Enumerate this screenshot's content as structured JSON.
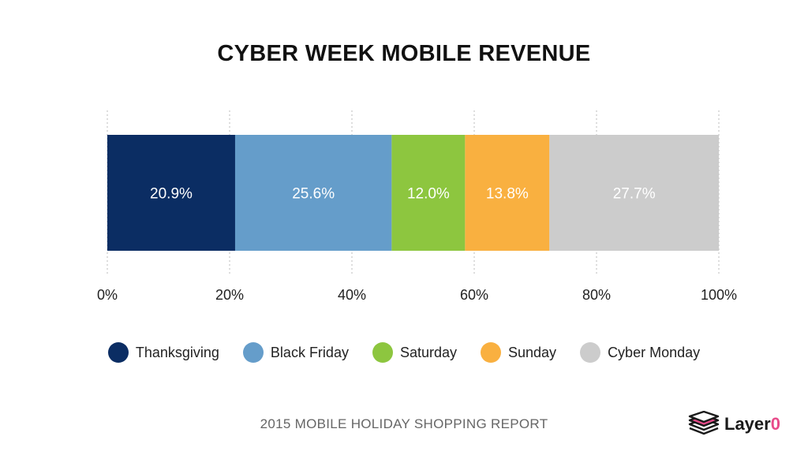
{
  "chart_data": {
    "type": "bar",
    "orientation": "horizontal",
    "stacked": true,
    "title": "CYBER WEEK MOBILE REVENUE",
    "categories": [
      ""
    ],
    "series": [
      {
        "name": "Thanksgiving",
        "values": [
          20.9
        ],
        "label": "20.9%",
        "color": "#0b2d63"
      },
      {
        "name": "Black Friday",
        "values": [
          25.6
        ],
        "label": "25.6%",
        "color": "#659dca"
      },
      {
        "name": "Saturday",
        "values": [
          12.0
        ],
        "label": "12.0%",
        "color": "#8dc63f"
      },
      {
        "name": "Sunday",
        "values": [
          13.8
        ],
        "label": "13.8%",
        "color": "#f9b040"
      },
      {
        "name": "Cyber Monday",
        "values": [
          27.7
        ],
        "label": "27.7%",
        "color": "#cccccc"
      }
    ],
    "xlim": [
      0,
      100
    ],
    "xticks": [
      0,
      20,
      40,
      60,
      80,
      100
    ],
    "xtick_labels": [
      "0%",
      "20%",
      "40%",
      "60%",
      "80%",
      "100%"
    ],
    "grid": "vertical dashed",
    "legend_position": "bottom"
  },
  "footer": "2015 MOBILE HOLIDAY SHOPPING REPORT",
  "logo": {
    "text": "Layer",
    "accent": "0",
    "accent_color": "#e84b8a"
  }
}
